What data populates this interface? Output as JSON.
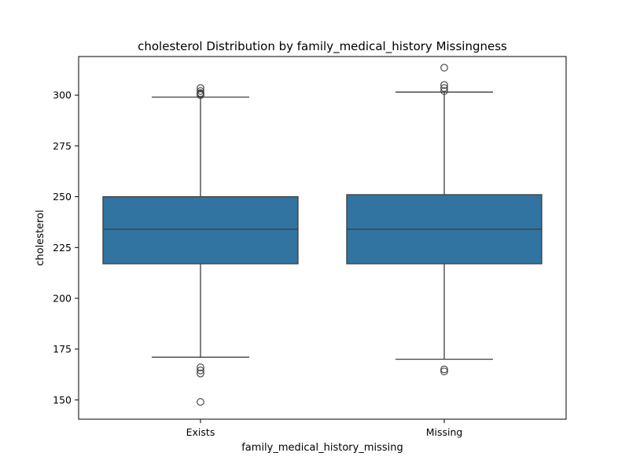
{
  "chart_data": {
    "type": "box",
    "title": "cholesterol Distribution by family_medical_history Missingness",
    "xlabel": "family_medical_history_missing",
    "ylabel": "cholesterol",
    "ylim": [
      140.5,
      319
    ],
    "yticks": [
      150,
      175,
      200,
      225,
      250,
      275,
      300
    ],
    "grid": false,
    "legend": "none",
    "box_color": "#3274a1",
    "line_color": "#3d3d3d",
    "categories": [
      "Exists",
      "Missing"
    ],
    "boxes": [
      {
        "category": "Exists",
        "whisker_low": 171,
        "q1": 217,
        "median": 234,
        "q3": 250,
        "whisker_high": 299,
        "outliers": [
          149,
          163,
          164.5,
          166,
          300,
          300.5,
          301,
          302,
          303.5
        ]
      },
      {
        "category": "Missing",
        "whisker_low": 170,
        "q1": 217,
        "median": 234,
        "q3": 251,
        "whisker_high": 301.5,
        "outliers": [
          164,
          165,
          302,
          303.5,
          305,
          313.5
        ]
      }
    ]
  }
}
